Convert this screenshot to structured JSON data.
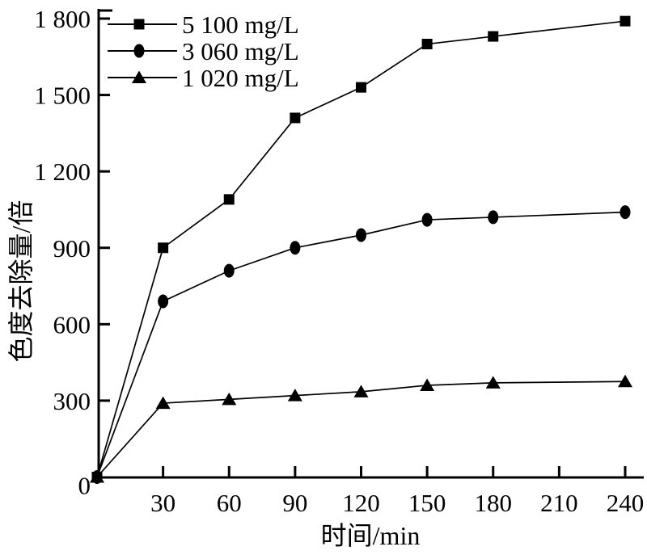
{
  "figure": {
    "background": "#ffffff",
    "line_color": "#000000",
    "text_color": "#000000"
  },
  "chart_data": {
    "type": "line",
    "title": "",
    "xlabel": "时间/min",
    "ylabel": "色度去除量/倍",
    "x": [
      0,
      30,
      60,
      90,
      120,
      150,
      180,
      240
    ],
    "xticks": [
      30,
      60,
      90,
      120,
      150,
      180,
      210,
      240
    ],
    "xtick_labels": [
      "30",
      "60",
      "90",
      "120",
      "150",
      "180",
      "210",
      "240"
    ],
    "yticks": [
      0,
      300,
      600,
      900,
      1200,
      1500,
      1800
    ],
    "ytick_labels": [
      "0",
      "300",
      "600",
      "900",
      "1 200",
      "1 500",
      "1 800"
    ],
    "xlim": [
      0,
      248
    ],
    "ylim": [
      0,
      1800
    ],
    "grid": false,
    "legend_position": "top-left",
    "series": [
      {
        "name": "5 100 mg/L",
        "marker": "square",
        "values": [
          0,
          900,
          1090,
          1410,
          1530,
          1700,
          1730,
          1790
        ]
      },
      {
        "name": "3 060 mg/L",
        "marker": "circle",
        "values": [
          0,
          690,
          810,
          900,
          950,
          1010,
          1020,
          1040
        ]
      },
      {
        "name": "1 020 mg/L",
        "marker": "triangle",
        "values": [
          0,
          290,
          305,
          320,
          335,
          360,
          370,
          375
        ]
      }
    ]
  }
}
